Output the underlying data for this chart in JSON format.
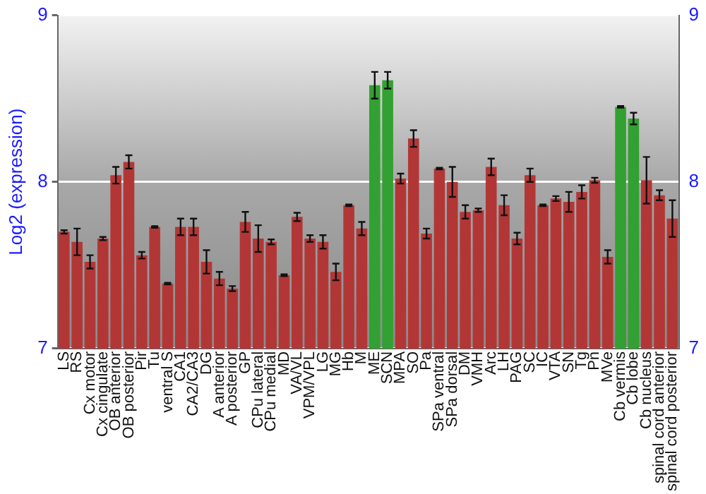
{
  "chart_data": {
    "type": "bar",
    "ylabel": "Log2 (expression)",
    "categories": [
      "LS",
      "RS",
      "Cx motor",
      "Cx cingulate",
      "OB anterior",
      "OB posterior",
      "Pir",
      "Tu",
      "ventral S",
      "CA1",
      "CA2/CA3",
      "DG",
      "A anterior",
      "A posterior",
      "GP",
      "CPu lateral",
      "CPu medial",
      "MD",
      "VA/VL",
      "VPM/VPL",
      "LG",
      "MG",
      "Hb",
      "M",
      "ME",
      "SCN",
      "MPA",
      "SO",
      "Pa",
      "SPa ventral",
      "SPa dorsal",
      "DM",
      "VMH",
      "Arc",
      "LH",
      "PAG",
      "SC",
      "IC",
      "VTA",
      "SN",
      "Tg",
      "Pn",
      "MVe",
      "Cb vermis",
      "Cb lobe",
      "Cb nucleus",
      "spinal cord anterior",
      "spinal cord posterior"
    ],
    "values": [
      7.7,
      7.64,
      7.52,
      7.66,
      8.04,
      8.12,
      7.56,
      7.73,
      7.39,
      7.73,
      7.73,
      7.52,
      7.42,
      7.36,
      7.76,
      7.66,
      7.64,
      7.44,
      7.79,
      7.66,
      7.64,
      7.46,
      7.86,
      7.72,
      8.58,
      8.61,
      8.02,
      8.26,
      7.69,
      8.08,
      8.0,
      7.82,
      7.83,
      8.09,
      7.86,
      7.66,
      8.04,
      7.86,
      7.9,
      7.88,
      7.94,
      8.01,
      7.55,
      8.45,
      8.38,
      8.01,
      7.92,
      7.78
    ],
    "errors": [
      0.01,
      0.08,
      0.04,
      0.01,
      0.05,
      0.04,
      0.02,
      0.005,
      0.005,
      0.05,
      0.05,
      0.07,
      0.04,
      0.015,
      0.06,
      0.08,
      0.015,
      0.005,
      0.025,
      0.02,
      0.04,
      0.05,
      0.005,
      0.04,
      0.08,
      0.05,
      0.03,
      0.05,
      0.03,
      0.005,
      0.09,
      0.04,
      0.01,
      0.05,
      0.06,
      0.035,
      0.04,
      0.005,
      0.015,
      0.06,
      0.04,
      0.015,
      0.04,
      0.005,
      0.035,
      0.14,
      0.03,
      0.11
    ],
    "colors": [
      "#b33636",
      "#b33636",
      "#b33636",
      "#b33636",
      "#b33636",
      "#b33636",
      "#b33636",
      "#b33636",
      "#b33636",
      "#b33636",
      "#b33636",
      "#b33636",
      "#b33636",
      "#b33636",
      "#b33636",
      "#b33636",
      "#b33636",
      "#b33636",
      "#b33636",
      "#b33636",
      "#b33636",
      "#b33636",
      "#b33636",
      "#b33636",
      "#32a032",
      "#32a032",
      "#b33636",
      "#b33636",
      "#b33636",
      "#b33636",
      "#b33636",
      "#b33636",
      "#b33636",
      "#b33636",
      "#b33636",
      "#b33636",
      "#b33636",
      "#b33636",
      "#b33636",
      "#b33636",
      "#b33636",
      "#b33636",
      "#b33636",
      "#32a032",
      "#32a032",
      "#b33636",
      "#b33636",
      "#b33636"
    ],
    "ylim": [
      7,
      9
    ],
    "yticks": [
      7,
      8,
      9
    ],
    "y2lim": [
      7,
      9
    ],
    "y2ticks": [
      7,
      8,
      9
    ],
    "grid": "y",
    "legend": false
  }
}
